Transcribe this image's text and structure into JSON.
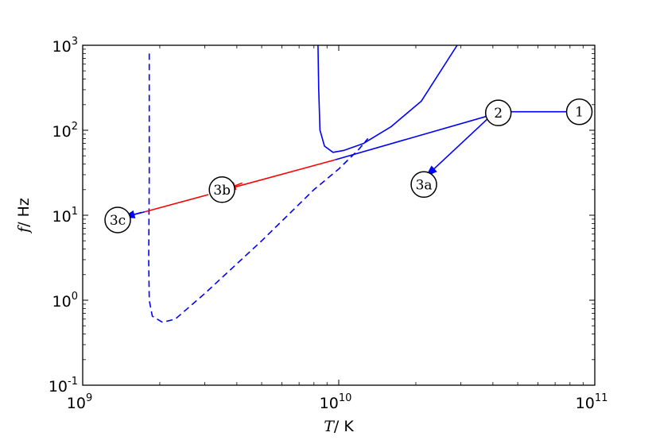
{
  "chart_data": {
    "type": "line",
    "xscale": "log",
    "yscale": "log",
    "xlim": [
      1000000000.0,
      100000000000.0
    ],
    "ylim": [
      0.1,
      1000
    ],
    "xlabel": {
      "symbol": "T",
      "unit": "/ K"
    },
    "ylabel": {
      "symbol": "f",
      "unit": "/ Hz"
    },
    "xticks": [
      {
        "value": 1000000000.0,
        "base": "10",
        "exp": "9"
      },
      {
        "value": 10000000000.0,
        "base": "10",
        "exp": "10"
      },
      {
        "value": 100000000000.0,
        "base": "10",
        "exp": "11"
      }
    ],
    "yticks": [
      {
        "value": 0.1,
        "base": "10",
        "exp": "-1"
      },
      {
        "value": 1,
        "base": "10",
        "exp": "0"
      },
      {
        "value": 10,
        "base": "10",
        "exp": "1"
      },
      {
        "value": 100,
        "base": "10",
        "exp": "2"
      },
      {
        "value": 1000,
        "base": "10",
        "exp": "3"
      }
    ],
    "colors": {
      "blue": "#0000ff",
      "red": "#ff0000"
    },
    "series": [
      {
        "style": "solid",
        "color": "blue",
        "points": [
          [
            8300000000.0,
            1000
          ],
          [
            8350000000.0,
            300
          ],
          [
            8450000000.0,
            100
          ],
          [
            8800000000.0,
            65
          ],
          [
            9500000000.0,
            55
          ],
          [
            10500000000.0,
            58
          ],
          [
            12500000000.0,
            70
          ],
          [
            16000000000.0,
            110
          ],
          [
            21000000000.0,
            220
          ],
          [
            29000000000.0,
            1000
          ]
        ]
      },
      {
        "style": "dashed",
        "color": "blue",
        "points": [
          [
            1820000000.0,
            800
          ],
          [
            1820000000.0,
            30
          ],
          [
            1810000000.0,
            3
          ],
          [
            1820000000.0,
            1.0
          ],
          [
            1870000000.0,
            0.65
          ],
          [
            2050000000.0,
            0.55
          ],
          [
            2300000000.0,
            0.6
          ],
          [
            3000000000.0,
            1.2
          ],
          [
            5000000000.0,
            5.0
          ],
          [
            8000000000.0,
            20
          ],
          [
            10000000000.0,
            35
          ],
          [
            12000000000.0,
            60
          ],
          [
            13000000000.0,
            80
          ]
        ]
      },
      {
        "style": "solid",
        "color": "blue",
        "points": [
          [
            42000000000.0,
            160
          ],
          [
            9700000000.0,
            45
          ]
        ]
      },
      {
        "style": "solid",
        "color": "blue",
        "points": [
          [
            47000000000.0,
            165
          ],
          [
            87000000000.0,
            165
          ]
        ]
      },
      {
        "style": "solid",
        "color": "red",
        "points": [
          [
            9700000000.0,
            45
          ],
          [
            3600000000.0,
            20
          ]
        ]
      },
      {
        "style": "solid",
        "color": "red",
        "points": [
          [
            3100000000.0,
            17.5
          ],
          [
            1750000000.0,
            11
          ]
        ]
      },
      {
        "style": "solid",
        "color": "blue",
        "points": [
          [
            1750000000.0,
            11
          ],
          [
            1450000000.0,
            9.5
          ]
        ]
      }
    ],
    "arrows": [
      {
        "color": "blue",
        "from": [
          38000000000.0,
          135
        ],
        "to": [
          22000000000.0,
          29
        ]
      },
      {
        "color": "red",
        "from": [
          4200000000.0,
          24
        ],
        "to": [
          3600000000.0,
          20
        ]
      },
      {
        "color": "blue",
        "from": [
          1700000000.0,
          10.8
        ],
        "to": [
          1450000000.0,
          9.5
        ]
      }
    ],
    "nodes": [
      {
        "label": "1",
        "x": 87000000000.0,
        "y": 165
      },
      {
        "label": "2",
        "x": 42000000000.0,
        "y": 160
      },
      {
        "label": "3a",
        "x": 21500000000.0,
        "y": 23
      },
      {
        "label": "3b",
        "x": 3500000000.0,
        "y": 20
      },
      {
        "label": "3c",
        "x": 1370000000.0,
        "y": 8.8
      }
    ]
  }
}
